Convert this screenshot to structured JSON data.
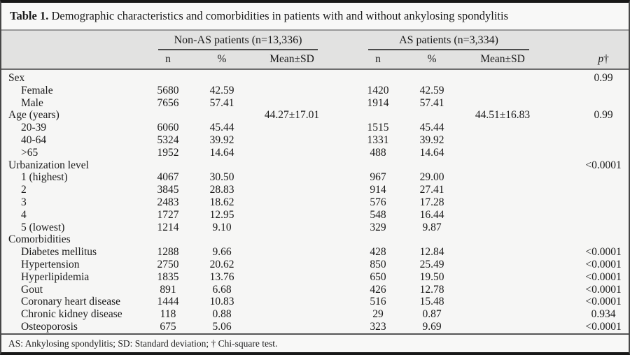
{
  "title": {
    "label": "Table 1.",
    "text": "Demographic characteristics and comorbidities in patients with and without ankylosing spondylitis"
  },
  "header": {
    "group1": "Non-AS patients  (n=13,336)",
    "group2": "AS patients  (n=3,334)",
    "sub_n": "n",
    "sub_pct": "%",
    "sub_mean": "Mean±SD",
    "p_label": "p",
    "p_dagger": "†"
  },
  "rows": [
    {
      "label": "Sex",
      "indent": false,
      "n1": "",
      "pct1": "",
      "mean1": "",
      "n2": "",
      "pct2": "",
      "mean2": "",
      "p": "0.99"
    },
    {
      "label": "Female",
      "indent": true,
      "n1": "5680",
      "pct1": "42.59",
      "mean1": "",
      "n2": "1420",
      "pct2": "42.59",
      "mean2": "",
      "p": ""
    },
    {
      "label": "Male",
      "indent": true,
      "n1": "7656",
      "pct1": "57.41",
      "mean1": "",
      "n2": "1914",
      "pct2": "57.41",
      "mean2": "",
      "p": ""
    },
    {
      "label": "Age (years)",
      "indent": false,
      "n1": "",
      "pct1": "",
      "mean1": "44.27±17.01",
      "n2": "",
      "pct2": "",
      "mean2": "44.51±16.83",
      "p": "0.99"
    },
    {
      "label": "20-39",
      "indent": true,
      "n1": "6060",
      "pct1": "45.44",
      "mean1": "",
      "n2": "1515",
      "pct2": "45.44",
      "mean2": "",
      "p": ""
    },
    {
      "label": "40-64",
      "indent": true,
      "n1": "5324",
      "pct1": "39.92",
      "mean1": "",
      "n2": "1331",
      "pct2": "39.92",
      "mean2": "",
      "p": ""
    },
    {
      "label": ">65",
      "indent": true,
      "n1": "1952",
      "pct1": "14.64",
      "mean1": "",
      "n2": "488",
      "pct2": "14.64",
      "mean2": "",
      "p": ""
    },
    {
      "label": "Urbanization level",
      "indent": false,
      "n1": "",
      "pct1": "",
      "mean1": "",
      "n2": "",
      "pct2": "",
      "mean2": "",
      "p": "<0.0001"
    },
    {
      "label": "1 (highest)",
      "indent": true,
      "n1": "4067",
      "pct1": "30.50",
      "mean1": "",
      "n2": "967",
      "pct2": "29.00",
      "mean2": "",
      "p": ""
    },
    {
      "label": "2",
      "indent": true,
      "n1": "3845",
      "pct1": "28.83",
      "mean1": "",
      "n2": "914",
      "pct2": "27.41",
      "mean2": "",
      "p": ""
    },
    {
      "label": "3",
      "indent": true,
      "n1": "2483",
      "pct1": "18.62",
      "mean1": "",
      "n2": "576",
      "pct2": "17.28",
      "mean2": "",
      "p": ""
    },
    {
      "label": "4",
      "indent": true,
      "n1": "1727",
      "pct1": "12.95",
      "mean1": "",
      "n2": "548",
      "pct2": "16.44",
      "mean2": "",
      "p": ""
    },
    {
      "label": "5 (lowest)",
      "indent": true,
      "n1": "1214",
      "pct1": "9.10",
      "mean1": "",
      "n2": "329",
      "pct2": "9.87",
      "mean2": "",
      "p": ""
    },
    {
      "label": "Comorbidities",
      "indent": false,
      "n1": "",
      "pct1": "",
      "mean1": "",
      "n2": "",
      "pct2": "",
      "mean2": "",
      "p": ""
    },
    {
      "label": "Diabetes mellitus",
      "indent": true,
      "n1": "1288",
      "pct1": "9.66",
      "mean1": "",
      "n2": "428",
      "pct2": "12.84",
      "mean2": "",
      "p": "<0.0001"
    },
    {
      "label": "Hypertension",
      "indent": true,
      "n1": "2750",
      "pct1": "20.62",
      "mean1": "",
      "n2": "850",
      "pct2": "25.49",
      "mean2": "",
      "p": "<0.0001"
    },
    {
      "label": "Hyperlipidemia",
      "indent": true,
      "n1": "1835",
      "pct1": "13.76",
      "mean1": "",
      "n2": "650",
      "pct2": "19.50",
      "mean2": "",
      "p": "<0.0001"
    },
    {
      "label": "Gout",
      "indent": true,
      "n1": "891",
      "pct1": "6.68",
      "mean1": "",
      "n2": "426",
      "pct2": "12.78",
      "mean2": "",
      "p": "<0.0001"
    },
    {
      "label": "Coronary heart disease",
      "indent": true,
      "n1": "1444",
      "pct1": "10.83",
      "mean1": "",
      "n2": "516",
      "pct2": "15.48",
      "mean2": "",
      "p": "<0.0001"
    },
    {
      "label": "Chronic kidney disease",
      "indent": true,
      "n1": "118",
      "pct1": "0.88",
      "mean1": "",
      "n2": "29",
      "pct2": "0.87",
      "mean2": "",
      "p": "0.934"
    },
    {
      "label": "Osteoporosis",
      "indent": true,
      "n1": "675",
      "pct1": "5.06",
      "mean1": "",
      "n2": "323",
      "pct2": "9.69",
      "mean2": "",
      "p": "<0.0001"
    }
  ],
  "footnote": "AS: Ankylosing spondylitis; SD: Standard deviation; † Chi-square test.",
  "colors": {
    "table_background": "#f6f6f5",
    "header_band": "#e2e2e1",
    "outer_border": "#181818",
    "rule": "#6e6e6e",
    "text": "#1a1a1a"
  }
}
